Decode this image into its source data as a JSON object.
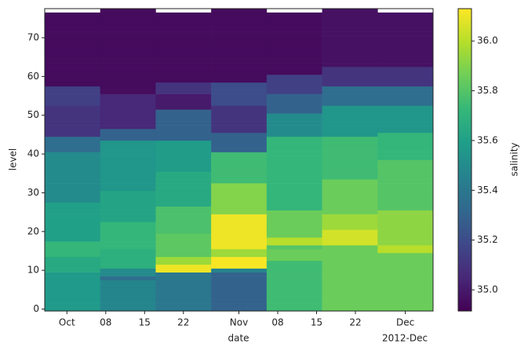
{
  "chart_data": {
    "type": "heatmap",
    "xlabel": "date",
    "ylabel": "level",
    "colorbar_label": "salinity",
    "x_offset_label": "2012-Dec",
    "colormap": "viridis",
    "x": [
      "2012-09-27",
      "2012-10-07",
      "2012-10-17",
      "2012-10-27",
      "2012-11-06",
      "2012-11-16",
      "2012-11-26",
      "2012-12-06"
    ],
    "y": [
      -0.5,
      0.5,
      1.5,
      2.5,
      3.5,
      4.5,
      5.5,
      6.5,
      7.5,
      8.5,
      9.5,
      10.5,
      11.5,
      12.5,
      13.5,
      14.5,
      15.5,
      16.5,
      17.5,
      18.5,
      19.5,
      20.5,
      21.5,
      22.5,
      23.5,
      24.5,
      25.5,
      26.5,
      27.5,
      28.5,
      29.5,
      30.5,
      31.5,
      32.5,
      33.5,
      34.5,
      35.5,
      36.5,
      37.5,
      38.5,
      39.5,
      40.5,
      41.5,
      42.5,
      43.5,
      44.5,
      45.5,
      46.5,
      47.5,
      48.5,
      49.5,
      50.5,
      51.5,
      52.5,
      53.5,
      54.5,
      55.5,
      56.5,
      57.5,
      58.5,
      59.5,
      60.5,
      61.5,
      62.5,
      63.5,
      64.5,
      65.5,
      66.5,
      67.5,
      68.5,
      69.5,
      70.5,
      71.5,
      72.5,
      73.5,
      74.5,
      75.5,
      76.5,
      77.5
    ],
    "z": [
      [
        35.57,
        35.57,
        35.57,
        35.57,
        35.57,
        35.57,
        35.57,
        35.57,
        35.57,
        35.57,
        35.65,
        35.65,
        35.65,
        35.65,
        35.72,
        35.72,
        35.72,
        35.72,
        35.6,
        35.6,
        35.6,
        35.6,
        35.6,
        35.6,
        35.6,
        35.6,
        35.6,
        35.6,
        35.5,
        35.5,
        35.5,
        35.5,
        35.5,
        35.5,
        35.5,
        35.5,
        35.5,
        35.5,
        35.5,
        35.5,
        35.5,
        35.35,
        35.35,
        35.35,
        35.35,
        35.1,
        35.1,
        35.1,
        35.1,
        35.1,
        35.1,
        35.1,
        35.1,
        35.15,
        35.15,
        35.15,
        35.15,
        35.15,
        34.95,
        34.95,
        34.95,
        34.95,
        34.95,
        34.95,
        34.95,
        34.95,
        34.95,
        34.95,
        34.95,
        34.95,
        34.95,
        34.95,
        34.95,
        34.95,
        34.95,
        34.95,
        34.95,
        null
      ],
      [
        35.47,
        35.47,
        35.47,
        35.47,
        35.47,
        35.47,
        35.47,
        35.47,
        35.35,
        35.5,
        35.5,
        35.68,
        35.68,
        35.68,
        35.68,
        35.68,
        35.72,
        35.72,
        35.72,
        35.72,
        35.72,
        35.72,
        35.72,
        35.62,
        35.62,
        35.62,
        35.62,
        35.62,
        35.62,
        35.62,
        35.62,
        35.55,
        35.55,
        35.55,
        35.55,
        35.55,
        35.55,
        35.55,
        35.55,
        35.55,
        35.55,
        35.55,
        35.55,
        35.55,
        35.3,
        35.3,
        35.3,
        35.05,
        35.05,
        35.05,
        35.05,
        35.05,
        35.05,
        35.05,
        35.05,
        35.05,
        34.95,
        34.95,
        34.95,
        34.95,
        34.95,
        34.95,
        34.95,
        34.95,
        34.95,
        34.95,
        34.95,
        34.95,
        34.95,
        34.95,
        34.95,
        34.95,
        34.95,
        34.95,
        34.95,
        34.95,
        34.95,
        34.95
      ],
      [
        35.4,
        35.4,
        35.4,
        35.4,
        35.4,
        35.4,
        35.4,
        35.4,
        35.4,
        35.4,
        36.1,
        36.1,
        35.95,
        35.95,
        35.82,
        35.82,
        35.82,
        35.82,
        35.82,
        35.82,
        35.78,
        35.78,
        35.78,
        35.78,
        35.78,
        35.78,
        35.78,
        35.65,
        35.65,
        35.65,
        35.65,
        35.65,
        35.65,
        35.65,
        35.65,
        35.65,
        35.58,
        35.58,
        35.58,
        35.58,
        35.58,
        35.58,
        35.58,
        35.58,
        35.3,
        35.3,
        35.3,
        35.3,
        35.3,
        35.3,
        35.3,
        35.3,
        35.0,
        35.0,
        35.0,
        35.0,
        35.1,
        35.1,
        35.1,
        34.95,
        34.95,
        34.95,
        34.95,
        34.95,
        34.95,
        34.95,
        34.95,
        34.95,
        34.95,
        34.95,
        34.95,
        34.95,
        34.95,
        34.95,
        34.95,
        34.95,
        34.95,
        null
      ],
      [
        35.3,
        35.3,
        35.3,
        35.3,
        35.3,
        35.3,
        35.3,
        35.3,
        35.3,
        35.3,
        35.45,
        36.12,
        36.12,
        36.12,
        35.95,
        35.95,
        36.1,
        36.1,
        36.1,
        36.1,
        36.1,
        36.1,
        36.1,
        36.1,
        36.1,
        35.9,
        35.9,
        35.9,
        35.9,
        35.9,
        35.9,
        35.9,
        35.9,
        35.75,
        35.75,
        35.75,
        35.75,
        35.75,
        35.75,
        35.75,
        35.75,
        35.3,
        35.3,
        35.3,
        35.3,
        35.3,
        35.1,
        35.1,
        35.1,
        35.1,
        35.1,
        35.1,
        35.1,
        35.2,
        35.2,
        35.2,
        35.2,
        35.2,
        35.2,
        34.95,
        34.95,
        34.95,
        34.95,
        34.95,
        34.95,
        34.95,
        34.95,
        34.95,
        34.95,
        34.95,
        34.95,
        34.95,
        34.95,
        34.95,
        34.95,
        34.95,
        34.95,
        34.95
      ],
      [
        35.75,
        35.75,
        35.75,
        35.75,
        35.75,
        35.75,
        35.75,
        35.75,
        35.75,
        35.75,
        35.75,
        35.75,
        35.75,
        35.85,
        35.85,
        35.85,
        35.8,
        36.0,
        36.0,
        35.85,
        35.85,
        35.85,
        35.85,
        35.85,
        35.85,
        35.85,
        35.72,
        35.72,
        35.72,
        35.72,
        35.72,
        35.72,
        35.72,
        35.72,
        35.72,
        35.72,
        35.72,
        35.72,
        35.72,
        35.72,
        35.72,
        35.72,
        35.72,
        35.72,
        35.72,
        35.5,
        35.5,
        35.5,
        35.5,
        35.5,
        35.5,
        35.3,
        35.3,
        35.3,
        35.3,
        35.3,
        35.15,
        35.15,
        35.15,
        35.15,
        35.15,
        34.95,
        34.95,
        34.95,
        34.95,
        34.95,
        34.95,
        34.95,
        34.95,
        34.95,
        34.95,
        34.95,
        34.95,
        34.95,
        34.95,
        34.95,
        34.95,
        null
      ],
      [
        35.85,
        35.85,
        35.85,
        35.85,
        35.85,
        35.85,
        35.85,
        35.85,
        35.85,
        35.85,
        35.85,
        35.85,
        35.85,
        35.85,
        35.85,
        35.85,
        35.85,
        36.05,
        36.05,
        36.05,
        36.05,
        35.95,
        35.95,
        35.95,
        35.95,
        35.85,
        35.85,
        35.85,
        35.85,
        35.85,
        35.85,
        35.85,
        35.85,
        35.85,
        35.75,
        35.75,
        35.75,
        35.75,
        35.75,
        35.75,
        35.75,
        35.75,
        35.75,
        35.75,
        35.75,
        35.55,
        35.55,
        35.55,
        35.55,
        35.55,
        35.55,
        35.55,
        35.55,
        35.35,
        35.35,
        35.35,
        35.35,
        35.35,
        35.1,
        35.1,
        35.1,
        35.1,
        35.1,
        34.97,
        34.97,
        34.97,
        34.97,
        34.97,
        34.97,
        34.97,
        34.97,
        34.97,
        34.97,
        34.97,
        34.97,
        34.97,
        34.97,
        34.97
      ],
      [
        35.85,
        35.85,
        35.85,
        35.85,
        35.85,
        35.85,
        35.85,
        35.85,
        35.85,
        35.85,
        35.85,
        35.85,
        35.85,
        35.85,
        35.85,
        36.0,
        36.0,
        35.92,
        35.92,
        35.92,
        35.92,
        35.92,
        35.92,
        35.92,
        35.92,
        35.92,
        35.8,
        35.8,
        35.8,
        35.8,
        35.8,
        35.8,
        35.8,
        35.8,
        35.8,
        35.8,
        35.8,
        35.8,
        35.8,
        35.72,
        35.72,
        35.72,
        35.72,
        35.72,
        35.72,
        35.72,
        35.55,
        35.55,
        35.55,
        35.55,
        35.55,
        35.55,
        35.55,
        35.35,
        35.35,
        35.35,
        35.35,
        35.35,
        35.1,
        35.1,
        35.1,
        35.1,
        35.1,
        34.97,
        34.97,
        34.97,
        34.97,
        34.97,
        34.97,
        34.97,
        34.97,
        34.97,
        34.97,
        34.97,
        34.97,
        34.97,
        34.97,
        null
      ]
    ],
    "xlim": [
      "2012-09-27",
      "2012-12-06"
    ],
    "ylim": [
      -0.5,
      77.5
    ],
    "clim": [
      34.915,
      36.13
    ],
    "xticks": [
      {
        "value": "2012-10-01",
        "label": "Oct"
      },
      {
        "value": "2012-10-08",
        "label": "08"
      },
      {
        "value": "2012-10-15",
        "label": "15"
      },
      {
        "value": "2012-10-22",
        "label": "22"
      },
      {
        "value": "2012-11-01",
        "label": "Nov"
      },
      {
        "value": "2012-11-08",
        "label": "08"
      },
      {
        "value": "2012-11-15",
        "label": "15"
      },
      {
        "value": "2012-11-22",
        "label": "22"
      },
      {
        "value": "2012-12-01",
        "label": "Dec"
      }
    ],
    "yticks": [
      0,
      10,
      20,
      30,
      40,
      50,
      60,
      70
    ],
    "cticks": [
      {
        "value": 35,
        "label": "35.0"
      },
      35.2,
      35.4,
      35.6,
      35.8,
      {
        "value": 36,
        "label": "36.0"
      }
    ]
  }
}
